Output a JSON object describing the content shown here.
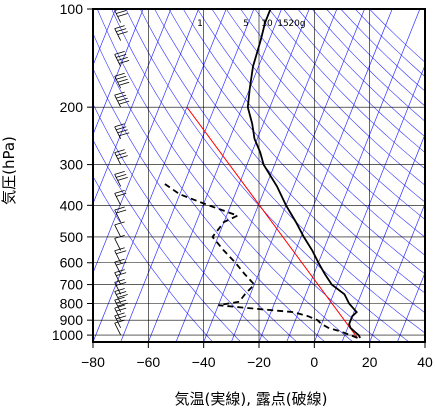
{
  "chart_data": {
    "type": "line",
    "subtype": "skew-T log-P sounding",
    "xlabel": "気温(実線), 露点(破線)",
    "ylabel": "気圧(hPa)",
    "x_ticks": [
      -80,
      -60,
      -40,
      -20,
      0,
      20,
      40
    ],
    "y_ticks": [
      100,
      200,
      300,
      400,
      500,
      600,
      700,
      800,
      900,
      1000
    ],
    "xlim": [
      -80,
      40
    ],
    "ylim": [
      1050,
      100
    ],
    "y_scale": "log",
    "grid": true,
    "mixing_ratio_labels": [
      "1",
      "5",
      "10",
      "15",
      "20g"
    ],
    "colors": {
      "temperature": "#000000",
      "dewpoint": "#000000",
      "reference_line": "#ff0000",
      "isotherms_adiabats": "#3333ff",
      "grid": "#000000",
      "wind_barbs": "#000000"
    },
    "series": [
      {
        "style": "solid",
        "points": [
          {
            "p": 1020,
            "t": 16
          },
          {
            "p": 1000,
            "t": 15
          },
          {
            "p": 975,
            "t": 13
          },
          {
            "p": 950,
            "t": 11
          },
          {
            "p": 925,
            "t": 10
          },
          {
            "p": 900,
            "t": 10
          },
          {
            "p": 875,
            "t": 10
          },
          {
            "p": 850,
            "t": 11
          },
          {
            "p": 825,
            "t": 9
          },
          {
            "p": 800,
            "t": 7
          },
          {
            "p": 750,
            "t": 4
          },
          {
            "p": 700,
            "t": -2
          },
          {
            "p": 650,
            "t": -6
          },
          {
            "p": 600,
            "t": -10
          },
          {
            "p": 550,
            "t": -14
          },
          {
            "p": 500,
            "t": -19
          },
          {
            "p": 450,
            "t": -24
          },
          {
            "p": 400,
            "t": -30
          },
          {
            "p": 350,
            "t": -36
          },
          {
            "p": 300,
            "t": -44
          },
          {
            "p": 275,
            "t": -47
          },
          {
            "p": 250,
            "t": -51
          },
          {
            "p": 225,
            "t": -54
          },
          {
            "p": 200,
            "t": -58
          },
          {
            "p": 175,
            "t": -60
          },
          {
            "p": 150,
            "t": -62
          },
          {
            "p": 125,
            "t": -63
          },
          {
            "p": 110,
            "t": -64
          },
          {
            "p": 100,
            "t": -64
          }
        ]
      },
      {
        "style": "dashed",
        "points": [
          {
            "p": 1020,
            "t": 15
          },
          {
            "p": 1000,
            "t": 12
          },
          {
            "p": 975,
            "t": 8
          },
          {
            "p": 950,
            "t": 3
          },
          {
            "p": 925,
            "t": 0
          },
          {
            "p": 900,
            "t": -2
          },
          {
            "p": 875,
            "t": -6
          },
          {
            "p": 850,
            "t": -12
          },
          {
            "p": 825,
            "t": -30
          },
          {
            "p": 810,
            "t": -40
          },
          {
            "p": 790,
            "t": -33
          },
          {
            "p": 750,
            "t": -32
          },
          {
            "p": 700,
            "t": -30
          },
          {
            "p": 650,
            "t": -35
          },
          {
            "p": 600,
            "t": -40
          },
          {
            "p": 550,
            "t": -46
          },
          {
            "p": 500,
            "t": -52
          },
          {
            "p": 450,
            "t": -50
          },
          {
            "p": 430,
            "t": -46
          },
          {
            "p": 400,
            "t": -58
          },
          {
            "p": 370,
            "t": -70
          },
          {
            "p": 340,
            "t": -78
          }
        ]
      }
    ],
    "reference_line": [
      {
        "p": 1020,
        "t": 15
      },
      {
        "p": 200,
        "t": -80
      }
    ],
    "wind_barbs": [
      {
        "p": 1000,
        "speed": 10
      },
      {
        "p": 950,
        "speed": 15
      },
      {
        "p": 900,
        "speed": 20
      },
      {
        "p": 850,
        "speed": 25
      },
      {
        "p": 800,
        "speed": 25
      },
      {
        "p": 750,
        "speed": 20
      },
      {
        "p": 700,
        "speed": 20
      },
      {
        "p": 650,
        "speed": 15
      },
      {
        "p": 600,
        "speed": 15
      },
      {
        "p": 550,
        "speed": 10
      },
      {
        "p": 500,
        "speed": 10
      },
      {
        "p": 450,
        "speed": 15
      },
      {
        "p": 400,
        "speed": 20
      },
      {
        "p": 350,
        "speed": 25
      },
      {
        "p": 300,
        "speed": 30
      },
      {
        "p": 250,
        "speed": 35
      },
      {
        "p": 200,
        "speed": 40
      },
      {
        "p": 175,
        "speed": 40
      },
      {
        "p": 150,
        "speed": 35
      },
      {
        "p": 125,
        "speed": 30
      },
      {
        "p": 110,
        "speed": 30
      }
    ]
  }
}
